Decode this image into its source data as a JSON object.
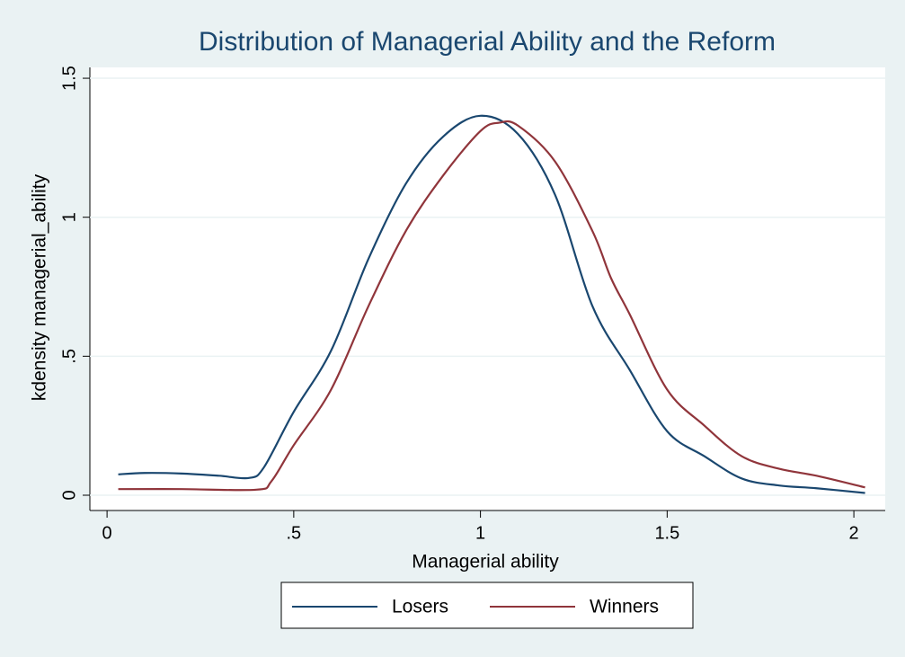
{
  "chart_data": {
    "type": "line",
    "title": "Distribution of Managerial Ability and the Reform",
    "x_label": "Managerial ability",
    "y_label": "kdensity managerial_ability",
    "xlim": [
      -0.046,
      2.084
    ],
    "ylim": [
      -0.055,
      1.539
    ],
    "xticks": [
      0,
      {
        "value": 0.5,
        "label": ".5"
      },
      1,
      1.5,
      2
    ],
    "yticks": [
      0,
      {
        "value": 0.5,
        "label": ".5"
      },
      1,
      1.5
    ],
    "grid": true,
    "legend": "bottom",
    "series": [
      {
        "name": "Losers",
        "color": "#1a476f",
        "x": [
          0.03,
          0.1,
          0.2,
          0.3,
          0.38,
          0.42,
          0.5,
          0.6,
          0.7,
          0.8,
          0.9,
          1.0,
          1.1,
          1.2,
          1.3,
          1.4,
          1.5,
          1.6,
          1.7,
          1.8,
          1.9,
          2.03
        ],
        "values": [
          0.075,
          0.08,
          0.078,
          0.07,
          0.062,
          0.1,
          0.3,
          0.52,
          0.85,
          1.12,
          1.29,
          1.365,
          1.3,
          1.08,
          0.68,
          0.45,
          0.23,
          0.14,
          0.06,
          0.035,
          0.025,
          0.008
        ]
      },
      {
        "name": "Winners",
        "color": "#90353b",
        "x": [
          0.03,
          0.2,
          0.4,
          0.44,
          0.5,
          0.6,
          0.7,
          0.8,
          0.9,
          1.0,
          1.05,
          1.1,
          1.2,
          1.3,
          1.35,
          1.4,
          1.5,
          1.6,
          1.7,
          1.8,
          1.9,
          2.03
        ],
        "values": [
          0.022,
          0.022,
          0.02,
          0.05,
          0.18,
          0.38,
          0.68,
          0.95,
          1.15,
          1.31,
          1.34,
          1.33,
          1.2,
          0.95,
          0.78,
          0.65,
          0.38,
          0.25,
          0.14,
          0.095,
          0.07,
          0.028
        ]
      }
    ]
  }
}
